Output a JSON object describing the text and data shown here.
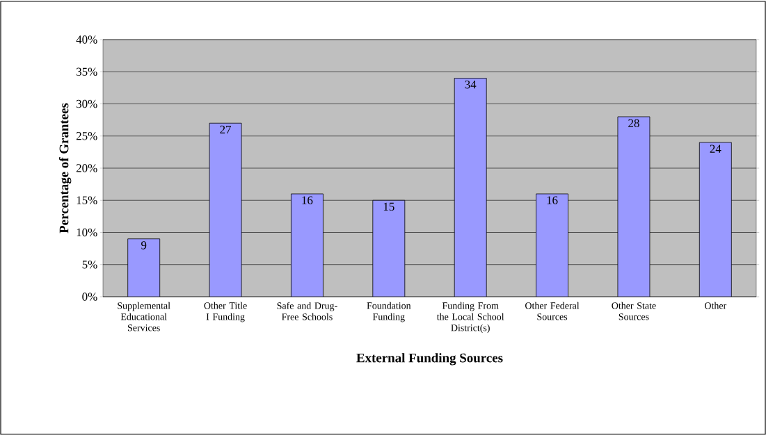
{
  "chart_data": {
    "type": "bar",
    "xlabel": "External Funding Sources",
    "ylabel": "Percentage of Grantees",
    "categories": [
      "Supplemental Educational Services",
      "Other Title I Funding",
      "Safe and Drug-Free Schools",
      "Foundation Funding",
      "Funding From the Local School District(s)",
      "Other Federal Sources",
      "Other State Sources",
      "Other"
    ],
    "values": [
      9,
      27,
      16,
      15,
      34,
      16,
      28,
      24
    ],
    "color": "#9999ff",
    "data_labels": true,
    "ylim": [
      0,
      40
    ],
    "yticks": [
      {
        "value": 0,
        "label": "0%"
      },
      {
        "value": 5,
        "label": "5%"
      },
      {
        "value": 10,
        "label": "10%"
      },
      {
        "value": 15,
        "label": "15%"
      },
      {
        "value": 20,
        "label": "20%"
      },
      {
        "value": 25,
        "label": "25%"
      },
      {
        "value": 30,
        "label": "30%"
      },
      {
        "value": 35,
        "label": "35%"
      },
      {
        "value": 40,
        "label": "40%"
      }
    ],
    "grid": "y"
  }
}
